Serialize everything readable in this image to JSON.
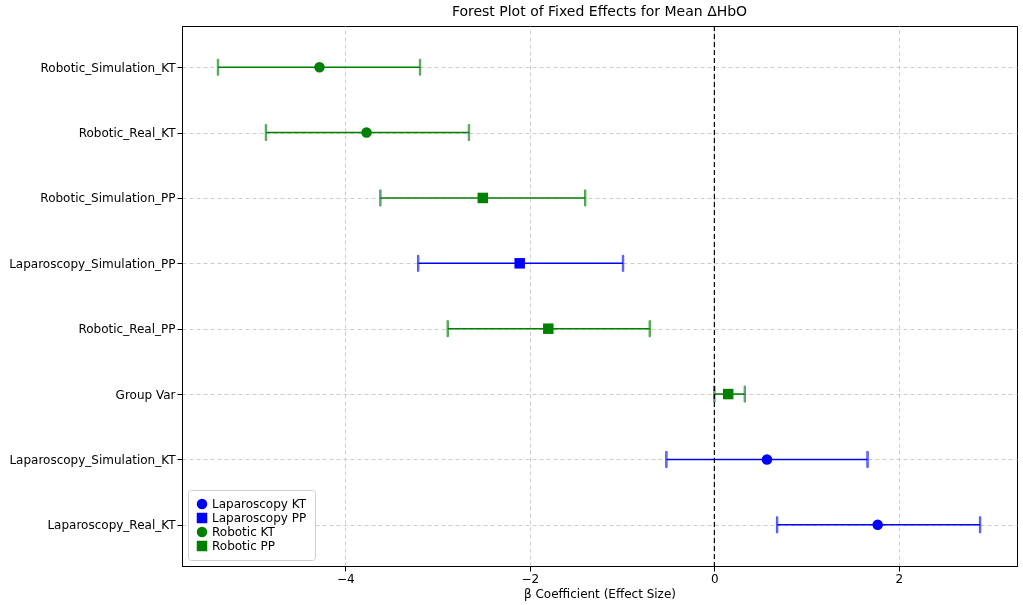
{
  "chart_data": {
    "type": "scatter",
    "orientation": "horizontal",
    "title": "Forest Plot of Fixed Effects for Mean ΔHbO",
    "xlabel": "β Coefficient (Effect Size)",
    "categories": [
      "Robotic_Simulation_KT",
      "Robotic_Real_KT",
      "Robotic_Simulation_PP",
      "Laparoscopy_Simulation_PP",
      "Robotic_Real_PP",
      "Group Var",
      "Laparoscopy_Simulation_KT",
      "Laparoscopy_Real_KT"
    ],
    "series": [
      {
        "name": "Laparoscopy KT",
        "color": "#0000ff",
        "marker": "circle",
        "values": [
          null,
          null,
          null,
          null,
          null,
          null,
          0.57,
          1.77
        ],
        "errors": [
          null,
          null,
          null,
          null,
          null,
          null,
          [
            -0.52,
            1.66
          ],
          [
            0.68,
            2.88
          ]
        ]
      },
      {
        "name": "Laparoscopy PP",
        "color": "#0000ff",
        "marker": "square",
        "values": [
          null,
          null,
          null,
          -2.11,
          null,
          null,
          null,
          null
        ],
        "errors": [
          null,
          null,
          null,
          [
            -3.21,
            -0.99
          ],
          null,
          null,
          null,
          null
        ]
      },
      {
        "name": "Robotic KT",
        "color": "#008000",
        "marker": "circle",
        "values": [
          -4.28,
          -3.77,
          null,
          null,
          null,
          null,
          null,
          null
        ],
        "errors": [
          [
            -5.38,
            -3.19
          ],
          [
            -4.86,
            -2.66
          ],
          null,
          null,
          null,
          null,
          null,
          null
        ]
      },
      {
        "name": "Robotic PP",
        "color": "#008000",
        "marker": "square",
        "values": [
          null,
          null,
          -2.51,
          null,
          -1.8,
          0.15,
          null,
          null
        ],
        "errors": [
          null,
          null,
          [
            -3.62,
            -1.4
          ],
          null,
          [
            -2.89,
            -0.7
          ],
          [
            0,
            0.33
          ],
          null,
          null
        ]
      }
    ],
    "xlim": [
      -5.77,
      3.28
    ],
    "xticks": [
      -4,
      -2,
      0,
      2
    ],
    "ref_lines": [
      {
        "axis": "x",
        "value": 0,
        "color": "#000000",
        "line_style": "dashed"
      }
    ],
    "grid": true,
    "legend": "bottom left"
  }
}
